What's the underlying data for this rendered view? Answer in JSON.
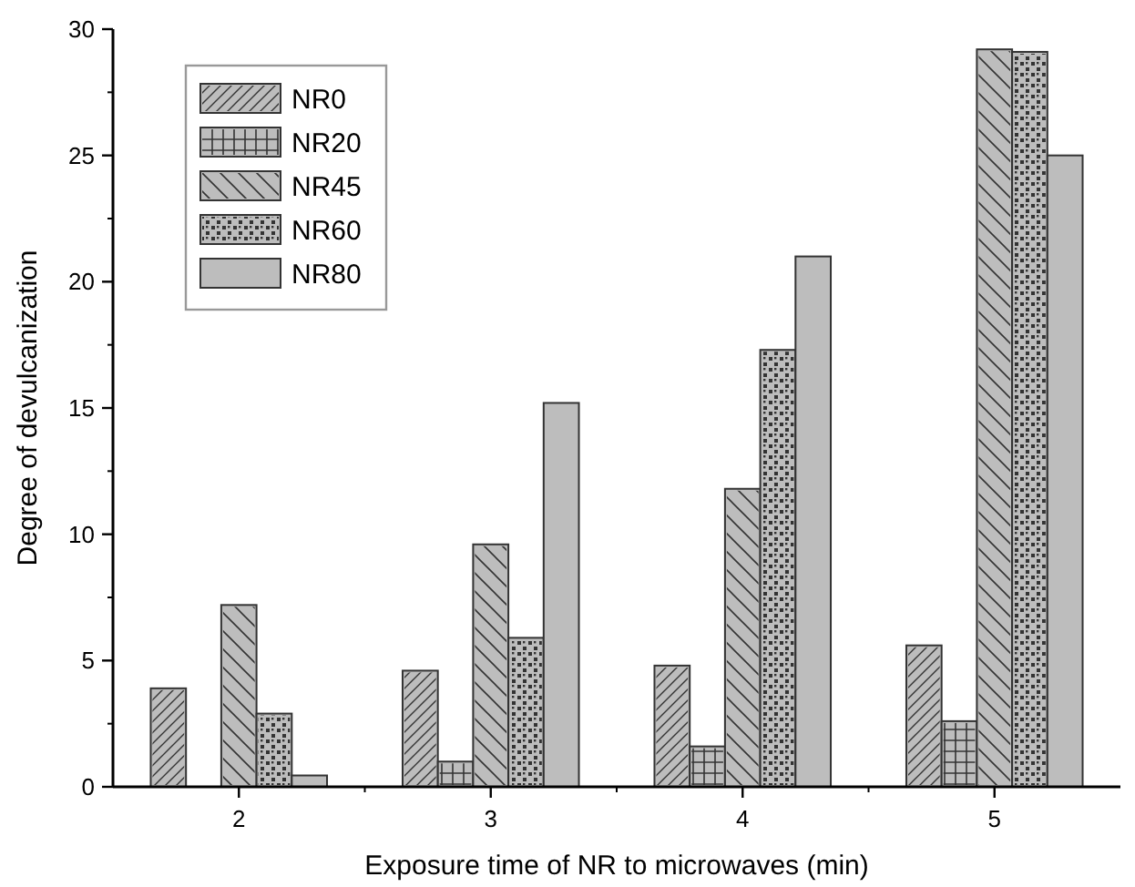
{
  "chart_data": {
    "type": "bar",
    "xlabel": "Exposure time of NR to microwaves (min)",
    "ylabel": "Degree of devulcanization",
    "categories": [
      "2",
      "3",
      "4",
      "5"
    ],
    "series": [
      {
        "name": "NR0",
        "color": "#bdbdbd",
        "values": [
          3.9,
          4.6,
          4.8,
          5.6
        ]
      },
      {
        "name": "NR20",
        "color": "#bdbdbd",
        "values": [
          0,
          1.0,
          1.6,
          2.6
        ]
      },
      {
        "name": "NR45",
        "color": "#bdbdbd",
        "values": [
          7.2,
          9.6,
          11.8,
          29.2
        ]
      },
      {
        "name": "NR60",
        "color": "#bdbdbd",
        "values": [
          2.9,
          5.9,
          17.3,
          29.1
        ]
      },
      {
        "name": "NR80",
        "color": "#bdbdbd",
        "values": [
          0.45,
          15.2,
          21.0,
          25.0
        ]
      }
    ],
    "ylim": [
      0,
      30
    ],
    "yticks": [
      0,
      5,
      10,
      15,
      20,
      25,
      30
    ],
    "legend": "top left",
    "grid": false
  }
}
